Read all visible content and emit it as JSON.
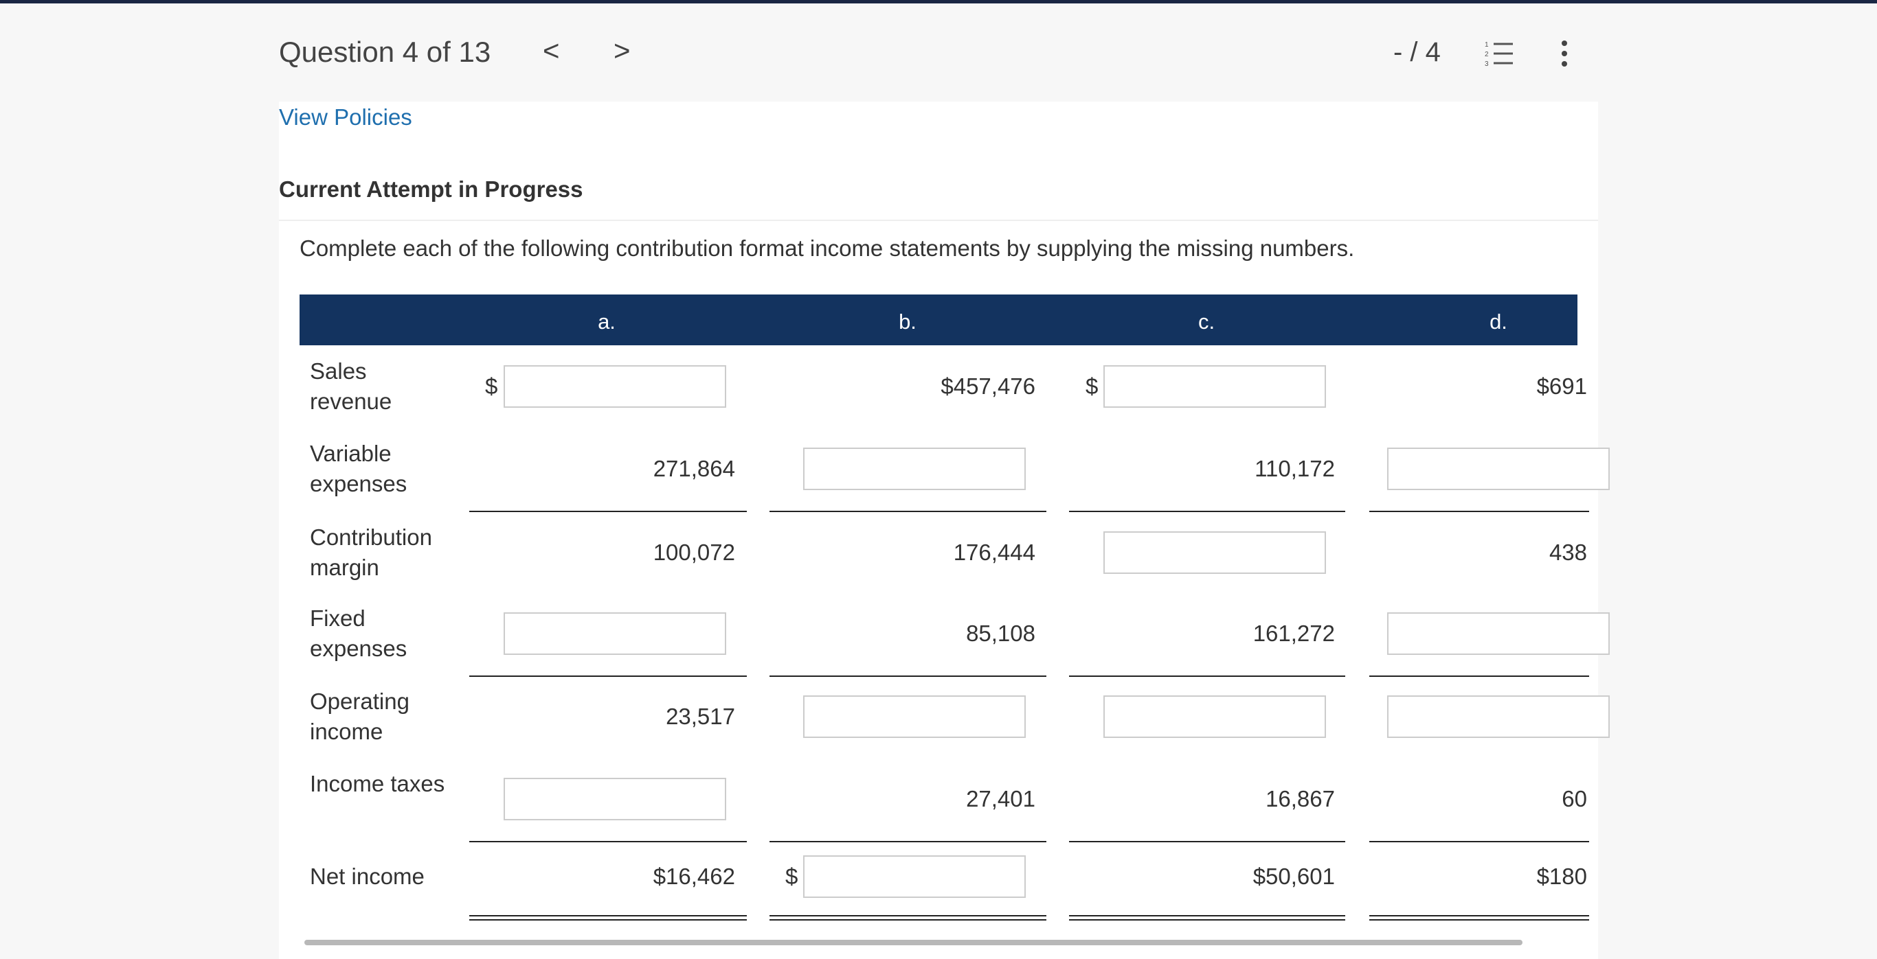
{
  "header": {
    "title": "Question 4 of 13",
    "prev": "<",
    "next": ">",
    "score": "- / 4"
  },
  "policies_link": "View Policies",
  "status": "Current Attempt in Progress",
  "instructions": "Complete each of the following contribution format income statements by supplying the missing numbers.",
  "table": {
    "columns": [
      "a.",
      "b.",
      "c.",
      "d."
    ],
    "rows": [
      {
        "label": "Sales revenue",
        "cells": [
          null,
          "$457,476",
          null,
          "$691"
        ],
        "prefixes": [
          "$",
          null,
          "$",
          null
        ],
        "rule": "none"
      },
      {
        "label": "Variable expenses",
        "cells": [
          "271,864",
          null,
          "110,172",
          null
        ],
        "prefixes": [
          null,
          null,
          null,
          null
        ],
        "rule": "single"
      },
      {
        "label": "Contribution margin",
        "cells": [
          "100,072",
          "176,444",
          null,
          "438"
        ],
        "prefixes": [
          null,
          null,
          null,
          null
        ],
        "rule": "none"
      },
      {
        "label": "Fixed expenses",
        "cells": [
          null,
          "85,108",
          "161,272",
          null
        ],
        "prefixes": [
          null,
          null,
          null,
          null
        ],
        "rule": "single"
      },
      {
        "label": "Operating income",
        "cells": [
          "23,517",
          null,
          null,
          null
        ],
        "prefixes": [
          null,
          null,
          null,
          null
        ],
        "rule": "none"
      },
      {
        "label": "Income taxes",
        "cells": [
          null,
          "27,401",
          "16,867",
          "60"
        ],
        "prefixes": [
          null,
          null,
          null,
          null
        ],
        "rule": "single"
      },
      {
        "label": "Net income",
        "cells": [
          "$16,462",
          null,
          "$50,601",
          "$180"
        ],
        "prefixes": [
          null,
          "$",
          null,
          null
        ],
        "rule": "double"
      }
    ]
  }
}
